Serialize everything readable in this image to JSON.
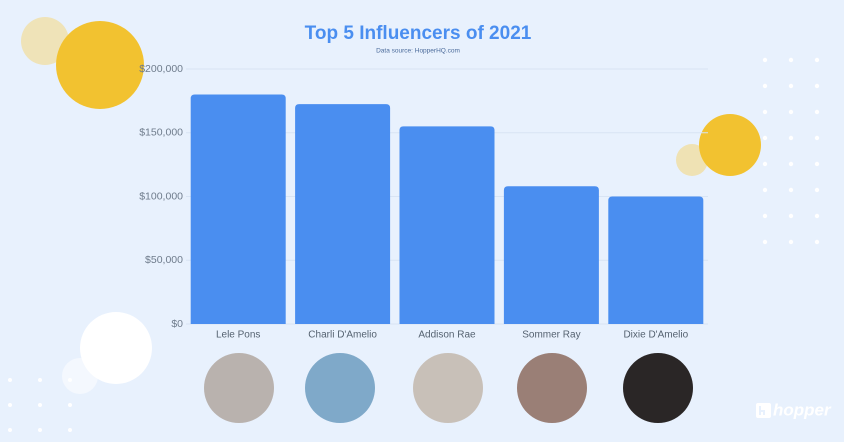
{
  "chart_data": {
    "type": "bar",
    "title": "Top 5 Influencers of 2021",
    "subtitle": "Data source: HopperHQ.com",
    "categories": [
      "Lele Pons",
      "Charli D'Amelio",
      "Addison Rae",
      "Sommer Ray",
      "Dixie D'Amelio"
    ],
    "values": [
      180000,
      172500,
      155000,
      108000,
      100000
    ],
    "color": "#4a8ef0",
    "ylim": [
      0,
      200000
    ],
    "yticks": [
      {
        "value": 0,
        "label": "$0"
      },
      {
        "value": 50000,
        "label": "$50,000"
      },
      {
        "value": 100000,
        "label": "$100,000"
      },
      {
        "value": 150000,
        "label": "$150,000"
      },
      {
        "value": 200000,
        "label": "$200,000"
      }
    ],
    "grid": true
  },
  "brand": "hopper"
}
